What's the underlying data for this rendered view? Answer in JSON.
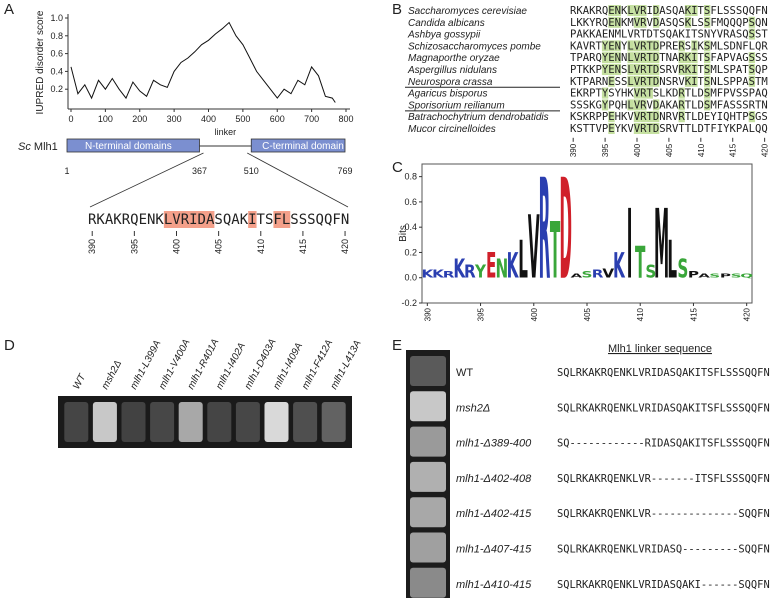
{
  "panel_labels": [
    "A",
    "B",
    "C",
    "D",
    "E"
  ],
  "chart_data": [
    {
      "type": "line",
      "ylabel": "IUPRED disorder score",
      "color": "#111111",
      "x": [
        0,
        20,
        40,
        60,
        80,
        100,
        120,
        140,
        160,
        180,
        200,
        220,
        240,
        260,
        280,
        300,
        320,
        340,
        360,
        380,
        400,
        420,
        440,
        460,
        480,
        500,
        520,
        540,
        560,
        580,
        600,
        620,
        640,
        660,
        680,
        700,
        720,
        740,
        760,
        769
      ],
      "values": [
        0.45,
        0.15,
        0.25,
        0.1,
        0.3,
        0.2,
        0.32,
        0.2,
        0.1,
        0.28,
        0.18,
        0.12,
        0.3,
        0.25,
        0.22,
        0.4,
        0.5,
        0.55,
        0.62,
        0.7,
        0.75,
        0.82,
        0.88,
        0.95,
        0.8,
        0.7,
        0.55,
        0.4,
        0.3,
        0.2,
        0.1,
        0.2,
        0.15,
        0.3,
        0.25,
        0.45,
        0.35,
        0.12,
        0.1,
        0.05
      ],
      "xlim": [
        0,
        800
      ],
      "ylim": [
        0,
        1
      ],
      "xticks": [
        0,
        100,
        200,
        300,
        400,
        500,
        600,
        700,
        800
      ],
      "yticks": [
        0.2,
        0.4,
        0.6,
        0.8,
        {
          "value": 1,
          "label": "1.0"
        }
      ]
    },
    {
      "type": "logo",
      "ylabel": "Bits",
      "x": [
        390,
        391,
        392,
        393,
        394,
        395,
        396,
        397,
        398,
        399,
        400,
        401,
        402,
        403,
        404,
        405,
        406,
        407,
        408,
        409,
        410,
        411,
        412,
        413,
        414,
        415,
        416,
        417,
        418,
        419,
        420
      ],
      "letters": [
        "K",
        "K",
        "R",
        "K",
        "R",
        "Y",
        "E",
        "N",
        "K",
        "L",
        "V",
        "R",
        "T",
        "D",
        "A",
        "S",
        "R",
        "V",
        "K",
        "I",
        "T",
        "S",
        "M",
        "L",
        "S",
        "P",
        "A",
        "S",
        "P",
        "S",
        "Q"
      ],
      "values": [
        0.06,
        0.06,
        0.05,
        0.15,
        0.1,
        0.1,
        0.2,
        0.15,
        0.2,
        0.3,
        0.5,
        0.8,
        0.45,
        0.8,
        0.03,
        0.05,
        0.06,
        0.07,
        0.2,
        0.55,
        0.25,
        0.1,
        0.55,
        0.3,
        0.15,
        0.05,
        0.03,
        0.03,
        0.03,
        0.03,
        0.03
      ],
      "xlim": [
        389.5,
        420.5
      ],
      "ylim": [
        -0.2,
        0.9
      ],
      "xticks": [
        390,
        395,
        400,
        405,
        410,
        415,
        420
      ],
      "yticks": [
        -0.2,
        {
          "value": 0,
          "label": "0.0"
        },
        0.2,
        0.4,
        0.6,
        0.8
      ]
    }
  ],
  "domain_diagram": {
    "species": "Sc",
    "protein": "Mlh1",
    "linker": "linker",
    "domains": [
      {
        "name": "N-terminal domains",
        "start": 1,
        "end": 367
      },
      {
        "name": "C-terminal domain",
        "start": 510,
        "end": 769
      }
    ],
    "sequence": [
      {
        "text": "RKAKRQENK",
        "highlight": false
      },
      {
        "text": "LVRIDA",
        "highlight": true
      },
      {
        "text": "SQAK",
        "highlight": false
      },
      {
        "text": "I",
        "highlight": true
      },
      {
        "text": "TS",
        "highlight": false
      },
      {
        "text": "FL",
        "highlight": true
      },
      {
        "text": "SSSQQFN",
        "highlight": false
      }
    ],
    "positions": [
      390,
      395,
      400,
      405,
      410,
      415,
      420
    ]
  },
  "alignment": {
    "groups": [
      [
        {
          "species": "Saccharomyces cerevisiae",
          "sequence": "RKAKRQENKLVRIDASQAKITSFLSSSQQFN"
        },
        {
          "species": "Candida albicans",
          "sequence": "LKKYRQENKMVRVDASQSKLSSFMQQQPSQN"
        },
        {
          "species": "Ashbya gossypii",
          "sequence": "PAKKAENMLVRTDTSQAKITSNYVRASQSST"
        },
        {
          "species": "Schizosaccharomyces pombe",
          "sequence": "KAVRTYENYLVRTDPRERSIKSMLSDNFLQR"
        },
        {
          "species": "Magnaporthe oryzae",
          "sequence": "TPARQYENNLVRTDTNARKITSFAPVAGSSS"
        },
        {
          "species": "Aspergillus nidulans",
          "sequence": "PTKKPYENSLVRTDSRVRKITSMLSPATSQP"
        },
        {
          "species": "Neurospora crassa",
          "sequence": "KTPARNESSLVRTDNSRVKITSNLSPPASTM"
        }
      ],
      [
        {
          "species": "Agaricus bisporus",
          "sequence": "EKRPTYSYHKVRTSLKDRTLDSMFPVSSPAQ"
        },
        {
          "species": "Sporisorium reilianum",
          "sequence": "SSSKGYPQHLVRVDAKARTLDSMFASSSRTN"
        }
      ],
      [
        {
          "species": "Batrachochytrium dendrobatidis",
          "sequence": "KSKRPPEHKVVRTDNRVRTLDEYIQHTPSGS"
        },
        {
          "species": "Mucor circinelloides",
          "sequence": "KSTTVPEYKVVRTDSRVTTLDTFIYKPALQQ"
        }
      ]
    ],
    "positions": [
      390,
      395,
      400,
      405,
      410,
      415,
      420
    ]
  },
  "spot_assay": {
    "strains": [
      "WT",
      "msh2Δ",
      "mlh1-L399A",
      "mlh1-V400A",
      "mlh1-R401A",
      "mlh1-I402A",
      "mlh1-D403A",
      "mlh1-I409A",
      "mlh1-F412A",
      "mlh1-L413A"
    ]
  },
  "linker_deletions": {
    "title": "Mlh1 linker sequence",
    "rows": [
      {
        "strain": "WT",
        "sequence": "SQLRKAKRQENKLVRIDASQAKITSFLSSSQQFN"
      },
      {
        "strain": "msh2Δ",
        "sequence": "SQLRKAKRQENKLVRIDASQAKITSFLSSSQQFN"
      },
      {
        "strain": "mlh1-Δ389-400",
        "sequence": "SQ------------RIDASQAKITSFLSSSQQFN"
      },
      {
        "strain": "mlh1-Δ402-408",
        "sequence": "SQLRKAKRQENKLVR-------ITSFLSSSQQFN"
      },
      {
        "strain": "mlh1-Δ402-415",
        "sequence": "SQLRKAKRQENKLVR--------------SQQFN"
      },
      {
        "strain": "mlh1-Δ407-415",
        "sequence": "SQLRKAKRQENKLVRIDASQ---------SQQFN"
      },
      {
        "strain": "mlh1-Δ410-415",
        "sequence": "SQLRKAKRQENKLVRIDASQAKI------SQQFN"
      }
    ]
  }
}
